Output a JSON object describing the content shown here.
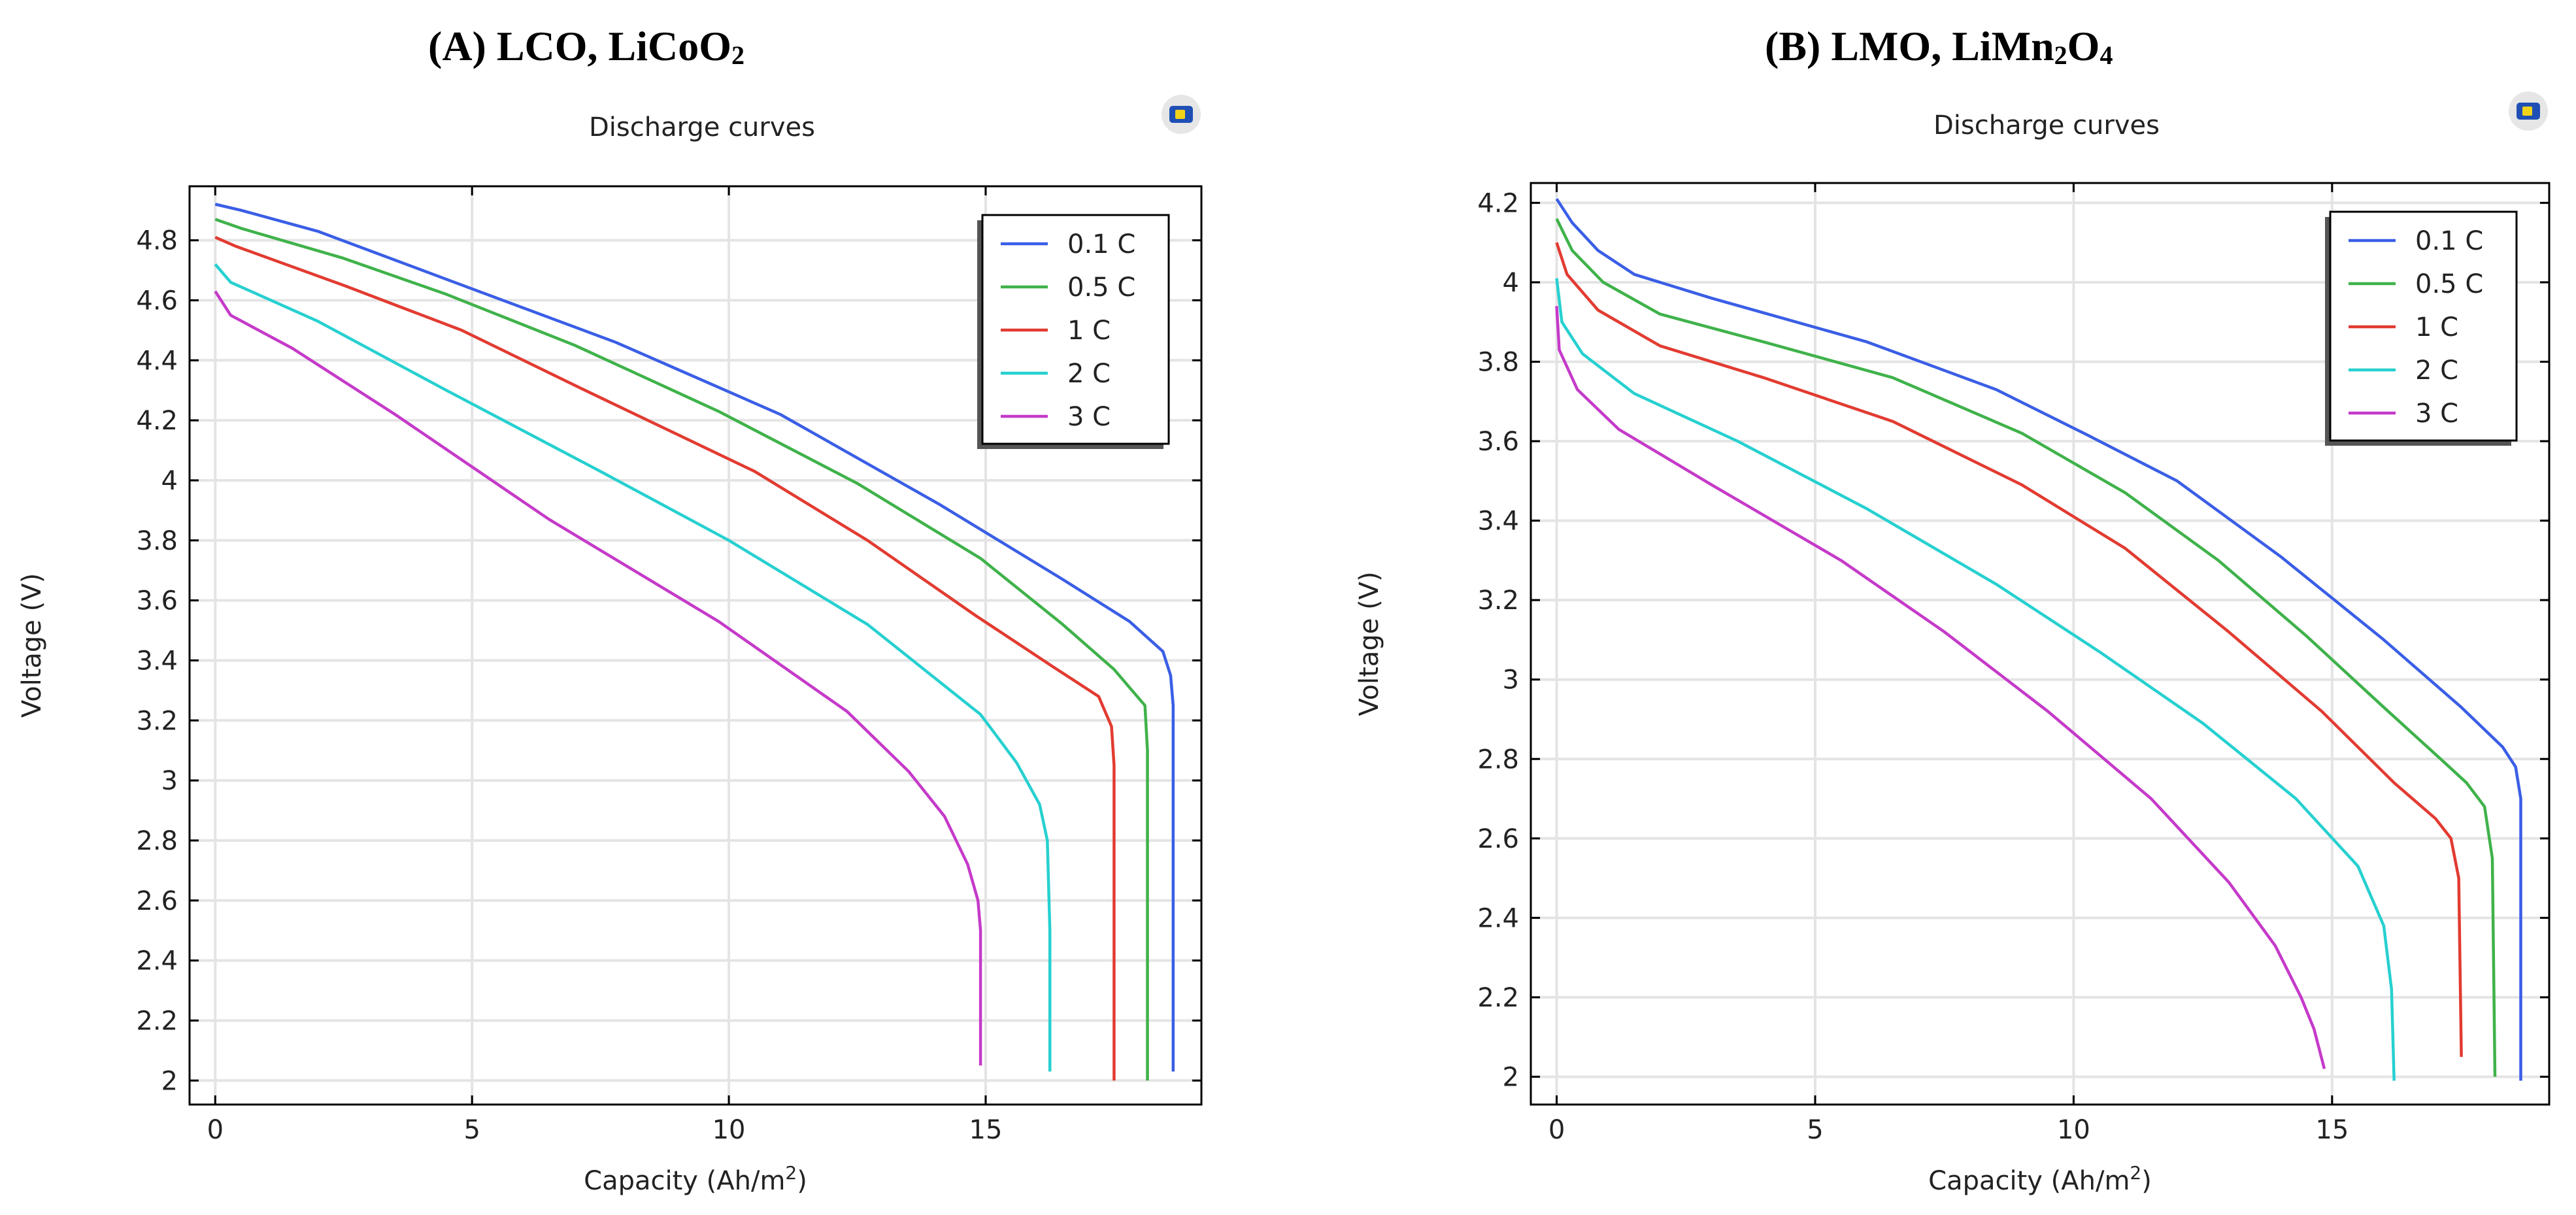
{
  "panels": [
    {
      "panel_title": "(A) LCO, LiCoO",
      "panel_title_sub": "2",
      "corner_icon": "comsol-logo-icon"
    },
    {
      "panel_title": "(B) LMO, LiMn",
      "panel_title_sub": "2",
      "panel_title_mid": "O",
      "panel_title_sub2": "4",
      "corner_icon": "comsol-logo-icon"
    }
  ],
  "chart_data": [
    {
      "type": "line",
      "title": "Discharge curves",
      "xlabel": "Capacity (Ah/m",
      "xlabel_sup": "2",
      "xlabel_end": ")",
      "ylabel": "Voltage (V)",
      "xlim": [
        -0.5,
        19.2
      ],
      "ylim": [
        1.92,
        4.98
      ],
      "xticks": [
        0,
        5,
        10,
        15
      ],
      "xtick_labels": [
        "0",
        "5",
        "10",
        "15"
      ],
      "yticks": [
        2,
        2.2,
        2.4,
        2.6,
        2.8,
        3,
        3.2,
        3.4,
        3.6,
        3.8,
        4,
        4.2,
        4.4,
        4.6,
        4.8
      ],
      "ytick_labels": [
        "2",
        "2.2",
        "2.4",
        "2.6",
        "2.8",
        "3",
        "3.2",
        "3.4",
        "3.6",
        "3.8",
        "4",
        "4.2",
        "4.4",
        "4.6",
        "4.8"
      ],
      "grid": true,
      "legend_position": "top-right",
      "series": [
        {
          "name": "0.1 C",
          "color": "#3a5ee6",
          "x": [
            0,
            0.5,
            2,
            4.5,
            7.8,
            11,
            14.1,
            16.5,
            17.8,
            18.45,
            18.6,
            18.65,
            18.65
          ],
          "y": [
            4.92,
            4.9,
            4.83,
            4.67,
            4.46,
            4.22,
            3.92,
            3.67,
            3.53,
            3.43,
            3.35,
            3.25,
            2.03
          ]
        },
        {
          "name": "0.5 C",
          "color": "#3fb24a",
          "x": [
            0,
            0.5,
            2.5,
            4.5,
            7,
            9.8,
            12.5,
            14.9,
            16.5,
            17.5,
            17.85,
            18.1,
            18.15,
            18.15
          ],
          "y": [
            4.87,
            4.84,
            4.74,
            4.62,
            4.45,
            4.23,
            3.99,
            3.74,
            3.52,
            3.37,
            3.3,
            3.25,
            3.1,
            2.0
          ]
        },
        {
          "name": "1 C",
          "color": "#e23b31",
          "x": [
            0,
            0.4,
            2.5,
            4.8,
            7.2,
            10.5,
            12.7,
            14.8,
            16.3,
            17.2,
            17.45,
            17.5,
            17.5
          ],
          "y": [
            4.81,
            4.78,
            4.65,
            4.5,
            4.3,
            4.03,
            3.8,
            3.55,
            3.38,
            3.28,
            3.18,
            3.05,
            2.0
          ]
        },
        {
          "name": "2 C",
          "color": "#27d0d0",
          "x": [
            0,
            0.3,
            2,
            4.5,
            7.5,
            10,
            12.7,
            14.9,
            15.6,
            16.05,
            16.2,
            16.25,
            16.25
          ],
          "y": [
            4.72,
            4.66,
            4.53,
            4.3,
            4.03,
            3.8,
            3.52,
            3.22,
            3.06,
            2.92,
            2.8,
            2.5,
            2.03
          ]
        },
        {
          "name": "3 C",
          "color": "#c53ac9",
          "x": [
            0,
            0.3,
            1.5,
            3.5,
            6.5,
            9.8,
            12.3,
            13.5,
            14.2,
            14.65,
            14.85,
            14.9,
            14.9
          ],
          "y": [
            4.63,
            4.55,
            4.44,
            4.22,
            3.87,
            3.53,
            3.23,
            3.03,
            2.88,
            2.72,
            2.6,
            2.5,
            2.05
          ]
        }
      ]
    },
    {
      "type": "line",
      "title": "Discharge curves",
      "xlabel": "Capacity (Ah/m",
      "xlabel_sup": "2",
      "xlabel_end": ")",
      "ylabel": "Voltage (V)",
      "xlim": [
        -0.5,
        19.2
      ],
      "ylim": [
        1.93,
        4.25
      ],
      "xticks": [
        0,
        5,
        10,
        15
      ],
      "xtick_labels": [
        "0",
        "5",
        "10",
        "15"
      ],
      "yticks": [
        2,
        2.2,
        2.4,
        2.6,
        2.8,
        3,
        3.2,
        3.4,
        3.6,
        3.8,
        4,
        4.2
      ],
      "ytick_labels": [
        "2",
        "2.2",
        "2.4",
        "2.6",
        "2.8",
        "3",
        "3.2",
        "3.4",
        "3.6",
        "3.8",
        "4",
        "4.2"
      ],
      "grid": true,
      "legend_position": "top-right",
      "series": [
        {
          "name": "0.1 C",
          "color": "#3a5ee6",
          "x": [
            0,
            0.3,
            0.8,
            1.5,
            3,
            6,
            8.5,
            10.2,
            12,
            14,
            16,
            17.5,
            18.3,
            18.55,
            18.65,
            18.65
          ],
          "y": [
            4.21,
            4.15,
            4.08,
            4.02,
            3.96,
            3.85,
            3.73,
            3.62,
            3.5,
            3.31,
            3.1,
            2.93,
            2.83,
            2.78,
            2.7,
            1.99
          ]
        },
        {
          "name": "0.5 C",
          "color": "#3fb24a",
          "x": [
            0,
            0.3,
            0.9,
            2,
            4,
            6.5,
            9,
            11,
            12.8,
            14.5,
            16,
            17.1,
            17.6,
            17.95,
            18.1,
            18.15
          ],
          "y": [
            4.16,
            4.08,
            4.0,
            3.92,
            3.85,
            3.76,
            3.62,
            3.47,
            3.3,
            3.11,
            2.93,
            2.8,
            2.74,
            2.68,
            2.55,
            2.0
          ]
        },
        {
          "name": "1 C",
          "color": "#e23b31",
          "x": [
            0,
            0.2,
            0.8,
            2,
            4,
            6.5,
            9,
            11,
            13,
            14.8,
            16.2,
            17,
            17.3,
            17.45,
            17.5
          ],
          "y": [
            4.1,
            4.02,
            3.93,
            3.84,
            3.76,
            3.65,
            3.49,
            3.33,
            3.12,
            2.92,
            2.74,
            2.65,
            2.6,
            2.5,
            2.05
          ]
        },
        {
          "name": "2 C",
          "color": "#27d0d0",
          "x": [
            0,
            0.1,
            0.5,
            1.5,
            3.5,
            6,
            8.5,
            10.5,
            12.5,
            14.3,
            15.5,
            16,
            16.15,
            16.2
          ],
          "y": [
            4.01,
            3.9,
            3.82,
            3.72,
            3.6,
            3.43,
            3.24,
            3.07,
            2.89,
            2.7,
            2.53,
            2.38,
            2.22,
            1.99
          ]
        },
        {
          "name": "3 C",
          "color": "#c53ac9",
          "x": [
            0,
            0.05,
            0.4,
            1.2,
            3,
            5.5,
            7.5,
            9.5,
            11.5,
            13,
            13.9,
            14.4,
            14.65,
            14.85
          ],
          "y": [
            3.94,
            3.83,
            3.73,
            3.63,
            3.49,
            3.3,
            3.12,
            2.92,
            2.7,
            2.49,
            2.33,
            2.2,
            2.12,
            2.02
          ]
        }
      ]
    }
  ]
}
